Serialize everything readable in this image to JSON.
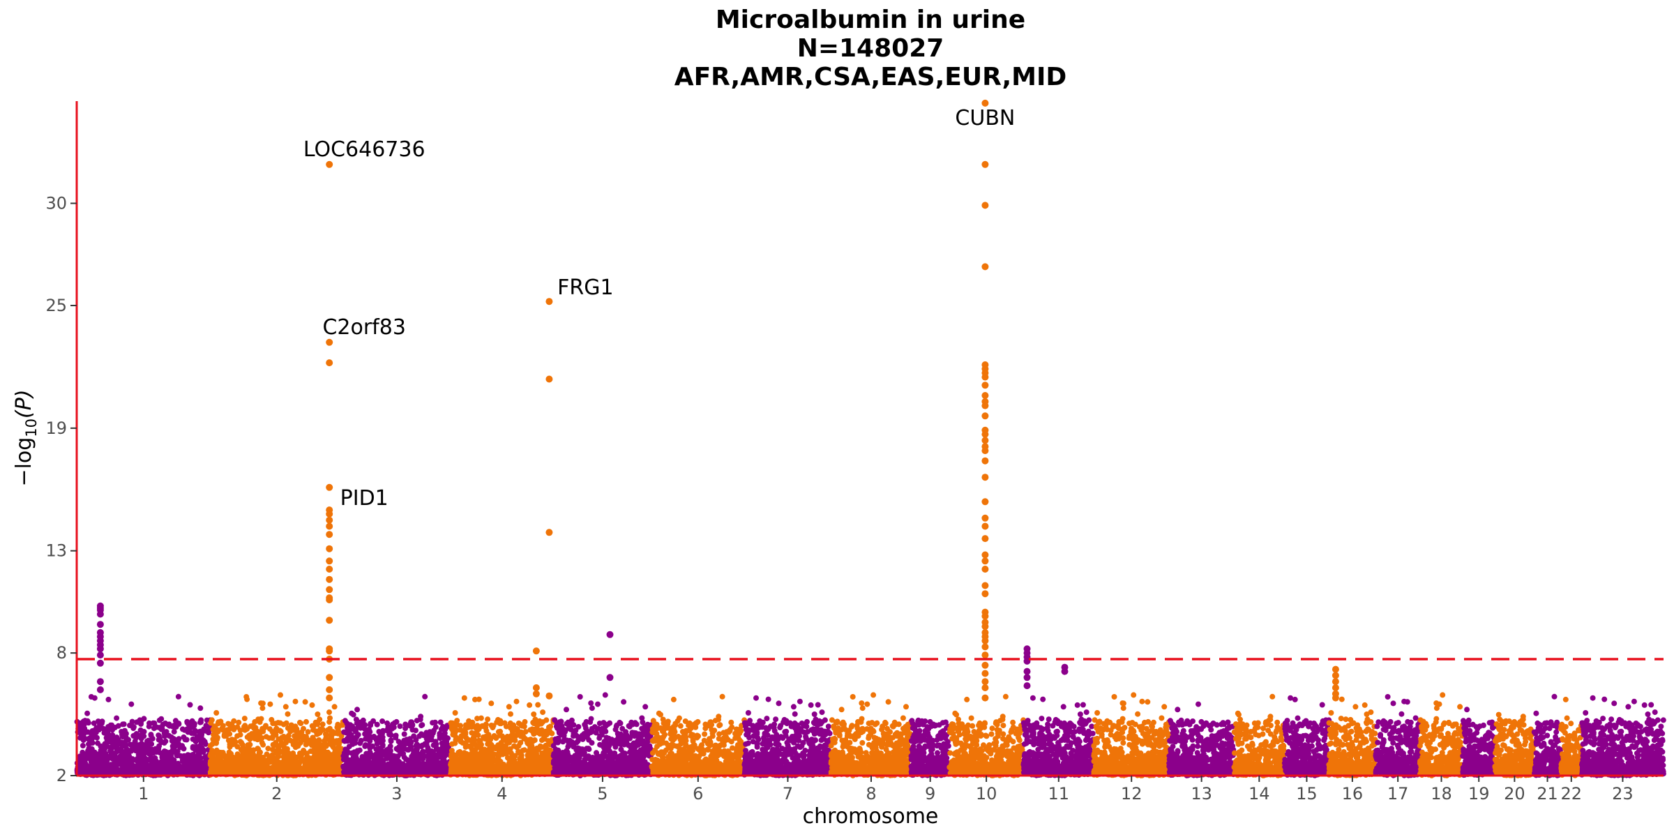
{
  "chart_data": {
    "type": "scatter",
    "subtype": "manhattan",
    "title_lines": [
      "Microalbumin in urine",
      "N=148027",
      "AFR,AMR,CSA,EAS,EUR,MID"
    ],
    "xlabel": "chromosome",
    "ylabel_prefix": "−log",
    "ylabel_sub": "10",
    "ylabel_suffix": "(P)",
    "y_ticks": [
      2,
      8,
      13,
      19,
      25,
      30
    ],
    "ylim": [
      2,
      33
    ],
    "significance_threshold": 7.7,
    "colors": {
      "odd": "#8b008b",
      "even": "#ef7408",
      "axis": "#e8101d",
      "threshold": "#e8101d"
    },
    "chromosomes": [
      {
        "label": "1",
        "start": 0.0,
        "end": 124.3
      },
      {
        "label": "2",
        "start": 124.3,
        "end": 247.8
      },
      {
        "label": "3",
        "start": 247.8,
        "end": 347.7
      },
      {
        "label": "4",
        "start": 347.7,
        "end": 443.5
      },
      {
        "label": "5",
        "start": 443.5,
        "end": 534.8
      },
      {
        "label": "6",
        "start": 534.8,
        "end": 621.1
      },
      {
        "label": "7",
        "start": 621.1,
        "end": 701.7
      },
      {
        "label": "8",
        "start": 701.7,
        "end": 776.2
      },
      {
        "label": "9",
        "start": 776.2,
        "end": 811.6
      },
      {
        "label": "10",
        "start": 811.6,
        "end": 880.6
      },
      {
        "label": "11",
        "start": 880.6,
        "end": 946.1
      },
      {
        "label": "12",
        "start": 946.1,
        "end": 1016.1
      },
      {
        "label": "13",
        "start": 1016.1,
        "end": 1076.4
      },
      {
        "label": "14",
        "start": 1076.4,
        "end": 1123.4
      },
      {
        "label": "15",
        "start": 1123.4,
        "end": 1164.8
      },
      {
        "label": "16",
        "start": 1164.8,
        "end": 1208.3
      },
      {
        "label": "17",
        "start": 1208.3,
        "end": 1249.5
      },
      {
        "label": "18",
        "start": 1249.5,
        "end": 1289.2
      },
      {
        "label": "19",
        "start": 1289.2,
        "end": 1319.2
      },
      {
        "label": "20",
        "start": 1319.2,
        "end": 1355.6
      },
      {
        "label": "21",
        "start": 1355.6,
        "end": 1380.4
      },
      {
        "label": "22",
        "start": 1380.4,
        "end": 1400.0
      },
      {
        "label": "23",
        "start": 1400.0,
        "end": 1476.0
      }
    ],
    "hits": [
      {
        "gene": "LOC646736",
        "chrom": "2",
        "pos": 235.0,
        "top": 31.9
      },
      {
        "gene": "C2orf83",
        "chrom": "2",
        "pos": 235.0,
        "top": 23.2
      },
      {
        "gene": "PID1",
        "chrom": "2",
        "pos": 235.0,
        "top": 16.1
      },
      {
        "gene": "FRG1",
        "chrom": "4",
        "pos": 439.5,
        "top": 25.2
      },
      {
        "gene": "CUBN",
        "chrom": "10",
        "pos": 845.0,
        "top": 34.9
      }
    ],
    "peaks": [
      {
        "chrom": "1",
        "pos": 22.0,
        "values": [
          10.3,
          10.2,
          10.1,
          9.9,
          9.4,
          9.0,
          8.8,
          8.6,
          8.4,
          8.2,
          7.9,
          7.5,
          6.6,
          6.2
        ]
      },
      {
        "chrom": "2",
        "pos": 235.0,
        "values": [
          31.9,
          23.2,
          22.2,
          16.1,
          15.0,
          14.8,
          14.5,
          14.2,
          13.8,
          13.1,
          12.5,
          12.1,
          11.6,
          11.1,
          10.7,
          10.6,
          9.6,
          8.2,
          8.1,
          7.7,
          6.8,
          6.2,
          5.8
        ]
      },
      {
        "chrom": "4",
        "pos": 439.5,
        "values": [
          25.2,
          21.4,
          13.9,
          5.9
        ]
      },
      {
        "chrom": "4",
        "pos": 427.5,
        "values": [
          8.1,
          6.3,
          6.0
        ]
      },
      {
        "chrom": "5",
        "pos": 496.0,
        "values": [
          8.9,
          6.8
        ]
      },
      {
        "chrom": "10",
        "pos": 845.0,
        "values": [
          34.9,
          31.9,
          29.9,
          26.9,
          22.1,
          21.9,
          21.7,
          21.5,
          21.1,
          20.6,
          20.3,
          20.1,
          19.6,
          18.9,
          18.7,
          18.4,
          18.1,
          17.9,
          17.4,
          16.6,
          15.4,
          14.6,
          14.2,
          13.6,
          12.8,
          12.5,
          12.1,
          11.3,
          10.9,
          10.0,
          9.8,
          9.5,
          9.3,
          9.0,
          8.8,
          8.6,
          8.3,
          7.9,
          7.4,
          7.0,
          6.6,
          6.3,
          5.8
        ]
      },
      {
        "chrom": "11",
        "pos": 884.0,
        "values": [
          8.2,
          8.0,
          7.8,
          7.6,
          7.1,
          6.8,
          6.4
        ]
      },
      {
        "chrom": "11",
        "pos": 919.0,
        "values": [
          7.3,
          7.1
        ]
      },
      {
        "chrom": "16",
        "pos": 1171.0,
        "values": [
          7.2,
          6.9,
          6.6,
          6.3,
          6.0,
          5.8
        ]
      }
    ]
  }
}
